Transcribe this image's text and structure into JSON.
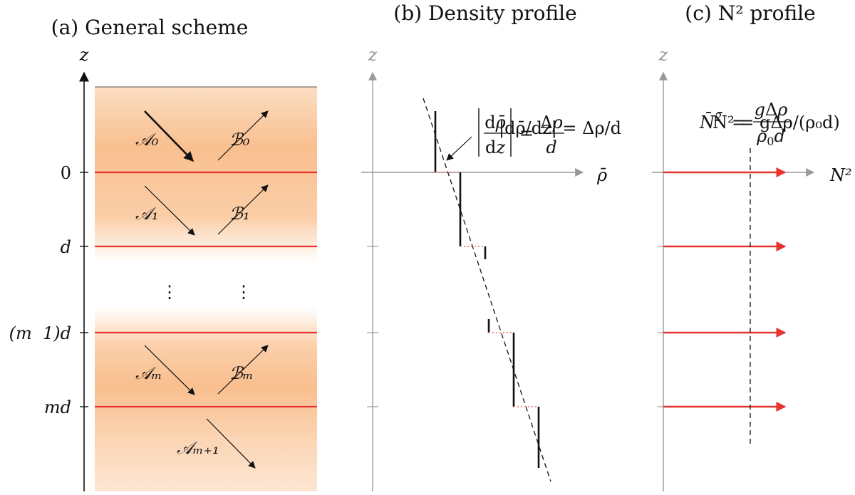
{
  "panels": {
    "a": {
      "title": "(a) General scheme"
    },
    "b": {
      "title": "(b) Density profile"
    },
    "c": {
      "title": "(c) N² profile"
    }
  },
  "axis_labels": {
    "z": "z",
    "rho_bar": "ρ̄",
    "n2": "N²"
  },
  "levels": {
    "zero": "0",
    "d": "d",
    "m_minus_1_d": "(m  1)d",
    "md": "md"
  },
  "waves": {
    "A0": "𝒜₀",
    "B0": "ℬ₀",
    "A1": "𝒜₁",
    "B1": "ℬ₁",
    "Am": "𝒜ₘ",
    "Bm": "ℬₘ",
    "Am1": "𝒜ₘ₊₁"
  },
  "ellipsis": "⋮",
  "gradient_formula": "|dρ̄/dz| = Δρ/d",
  "n2_formula": "N̄² = gΔρ/(ρ₀d)",
  "colors": {
    "interface": "#e8332e",
    "layer_fill": "#f9bd8c",
    "axis_gray": "#999999",
    "step_dotted": "#f28a8a"
  }
}
